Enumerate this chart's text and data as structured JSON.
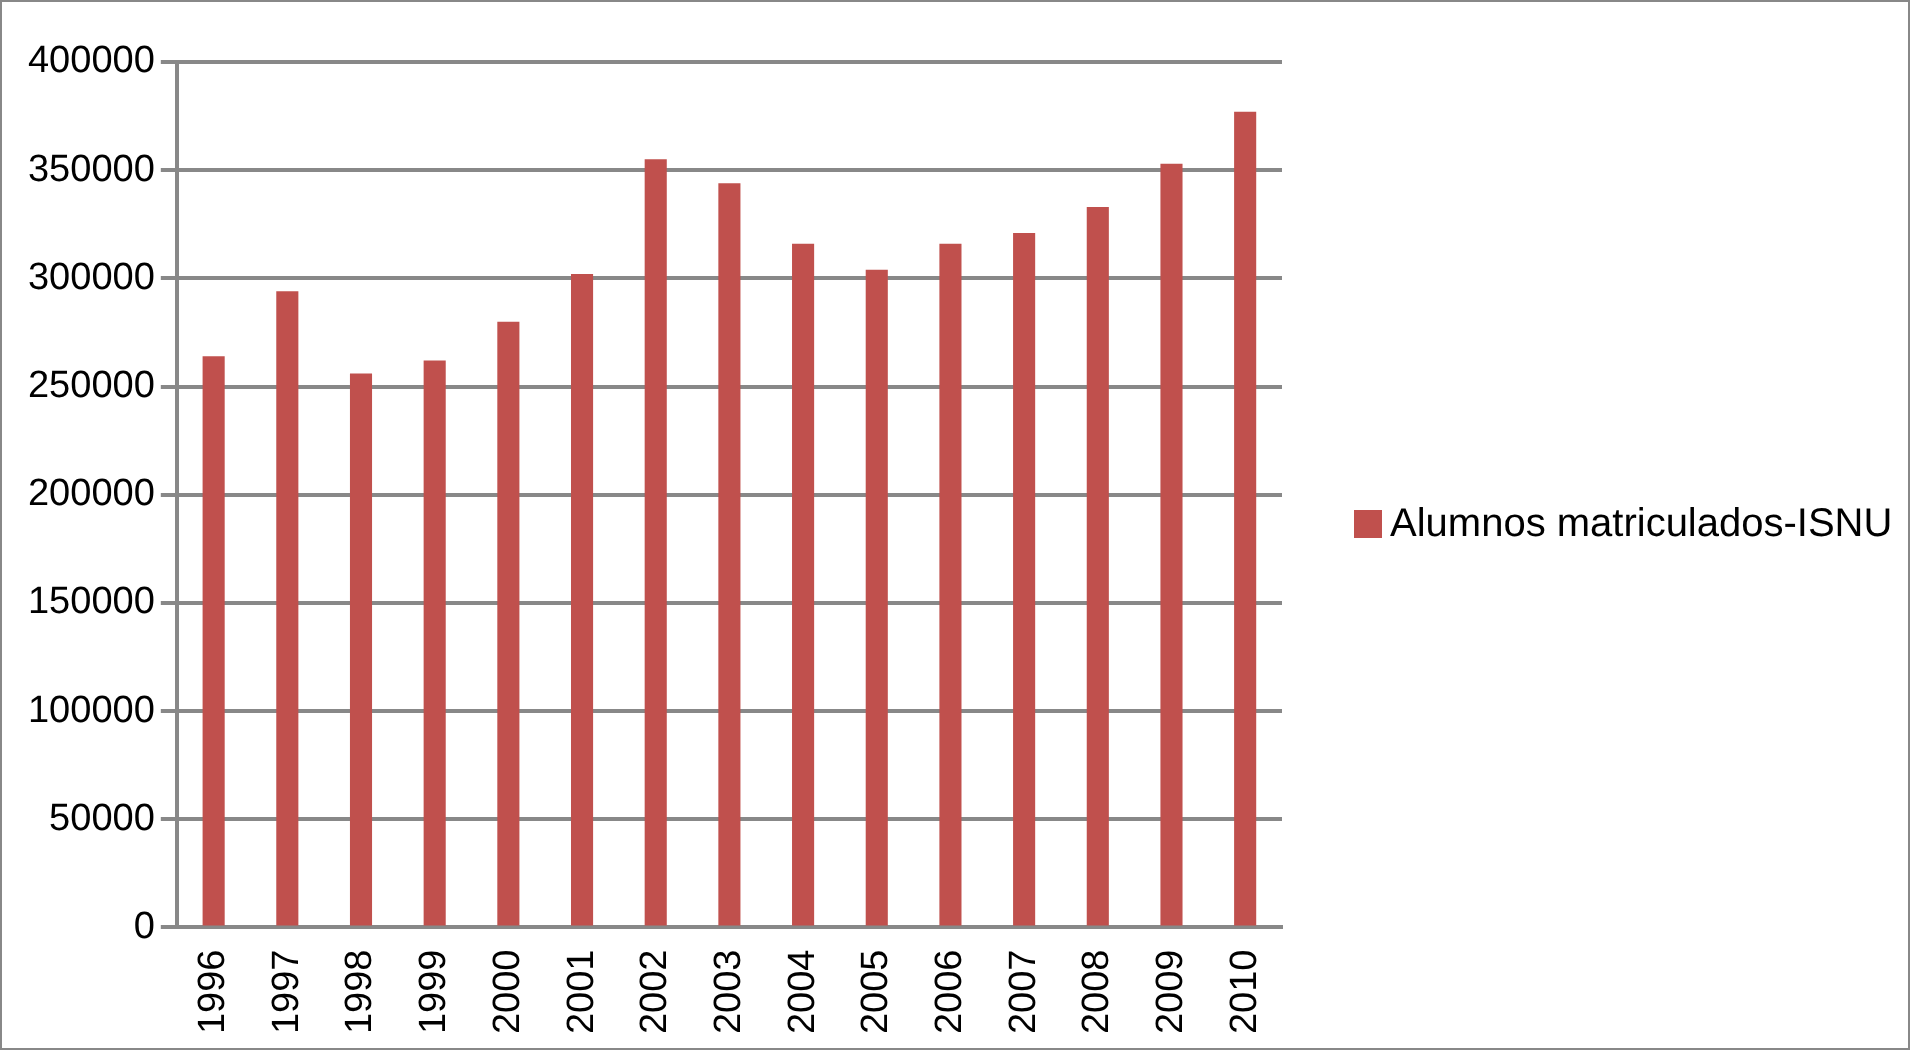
{
  "chart_data": {
    "type": "bar",
    "categories": [
      "1996",
      "1997",
      "1998",
      "1999",
      "2000",
      "2001",
      "2002",
      "2003",
      "2004",
      "2005",
      "2006",
      "2007",
      "2008",
      "2009",
      "2010"
    ],
    "series": [
      {
        "name": "Alumnos matriculados-ISNU",
        "color": "#c0504d",
        "values": [
          264000,
          294000,
          256000,
          262000,
          280000,
          302000,
          355000,
          344000,
          316000,
          304000,
          316000,
          321000,
          333000,
          353000,
          377000
        ]
      }
    ],
    "ylim": [
      0,
      400000
    ],
    "yticks": [
      0,
      50000,
      100000,
      150000,
      200000,
      250000,
      300000,
      350000,
      400000
    ],
    "grid": "y",
    "legend": "right"
  }
}
